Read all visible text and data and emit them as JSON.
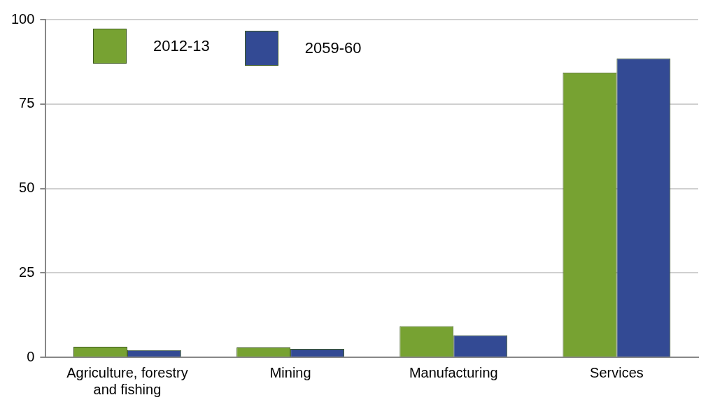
{
  "chart_data": {
    "type": "bar",
    "categories": [
      "Agriculture, forestry and fishing",
      "Mining",
      "Manufacturing",
      "Services"
    ],
    "series": [
      {
        "name": "2012-13",
        "color": "#77a232",
        "values": [
          3.1,
          2.9,
          9.2,
          84.3
        ]
      },
      {
        "name": "2059-60",
        "color": "#334a94",
        "values": [
          2.1,
          2.5,
          6.5,
          88.5
        ]
      }
    ],
    "ylim": [
      0,
      100
    ],
    "yticks": [
      0,
      25,
      50,
      75,
      100
    ],
    "grid": "y",
    "legend": "top left"
  }
}
